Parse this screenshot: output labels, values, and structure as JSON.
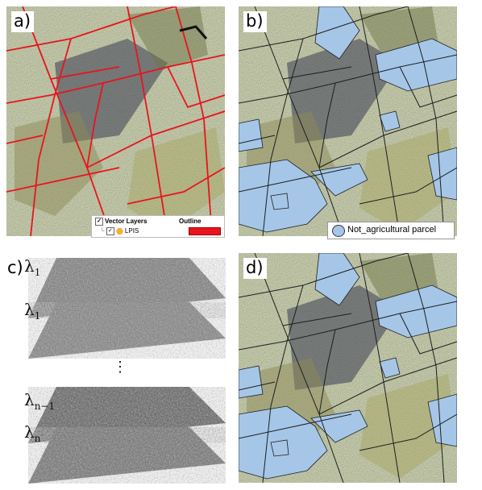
{
  "panels": {
    "a": {
      "label": "a)"
    },
    "b": {
      "label": "b)"
    },
    "c": {
      "label": "c)"
    },
    "d": {
      "label": "d)"
    }
  },
  "legend_a": {
    "group": "Vector Layers",
    "layer": "LPIS",
    "column": "Outline",
    "outline_color": "#e8141e"
  },
  "legend_b": {
    "entry": "Not_agricultural parcel",
    "fill_color": "#a6c6e8"
  },
  "stack": {
    "layers": [
      {
        "symbol": "λ",
        "sub": "1"
      },
      {
        "symbol": "λ",
        "sub": "1"
      },
      {
        "symbol": "λ",
        "sub": "n−1"
      },
      {
        "symbol": "λ",
        "sub": "n"
      }
    ],
    "ellipsis": "⋮"
  },
  "colors": {
    "parcel_red": "#e8141e",
    "mask_blue": "#a6c6e8",
    "boundary_dark": "#1b1f1e"
  }
}
